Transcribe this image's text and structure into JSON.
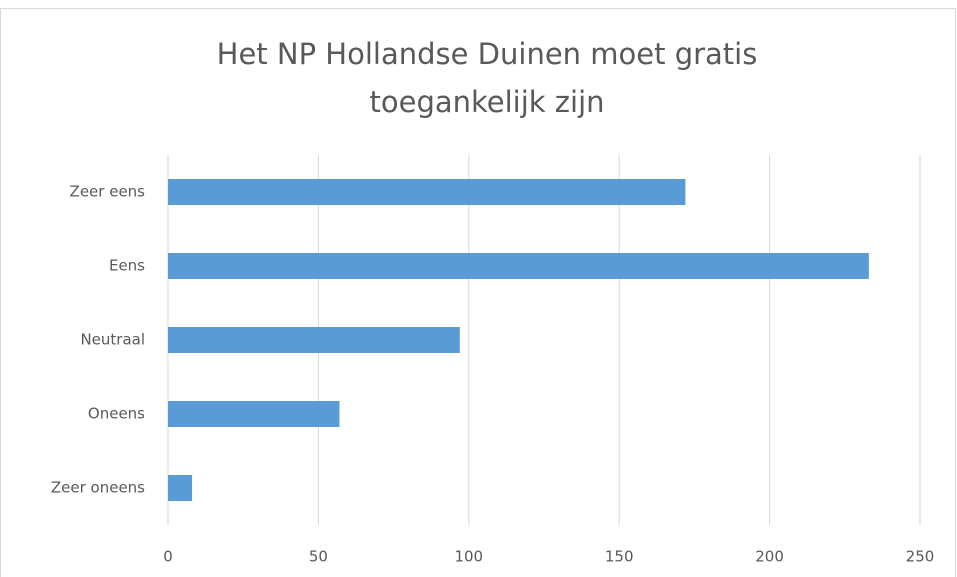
{
  "chart_data": {
    "type": "bar",
    "orientation": "horizontal",
    "title": "Het NP Hollandse Duinen moet gratis toegankelijk zijn",
    "categories": [
      "Zeer eens",
      "Eens",
      "Neutraal",
      "Oneens",
      "Zeer oneens"
    ],
    "values": [
      172,
      233,
      97,
      57,
      8
    ],
    "color": "#5b9bd5",
    "xlim": [
      0,
      250
    ],
    "xticks": [
      0,
      50,
      100,
      150,
      200,
      250
    ],
    "grid": true
  }
}
